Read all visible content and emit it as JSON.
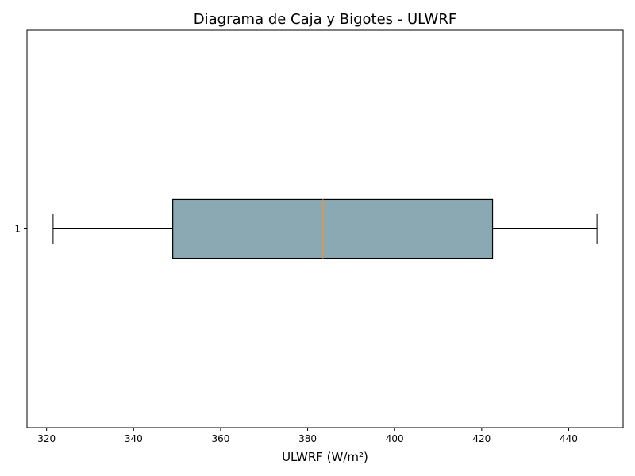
{
  "chart_data": {
    "type": "boxplot",
    "orientation": "horizontal",
    "title": "Diagrama de Caja y Bigotes - ULWRF",
    "xlabel": "ULWRF (W/m²)",
    "ylabel": "",
    "xlim": [
      315.5,
      452.5
    ],
    "xticks": [
      320,
      340,
      360,
      380,
      400,
      420,
      440
    ],
    "yticks": [
      "1"
    ],
    "grid": false,
    "boxes": [
      {
        "label": "1",
        "whisker_low": 321.5,
        "q1": 349,
        "median": 383.5,
        "q3": 422.5,
        "whisker_high": 446.5
      }
    ],
    "colors": {
      "box_fill": "#8aa9b2",
      "box_edge": "#000000",
      "median": "#e2944a",
      "whisker": "#000000"
    }
  }
}
